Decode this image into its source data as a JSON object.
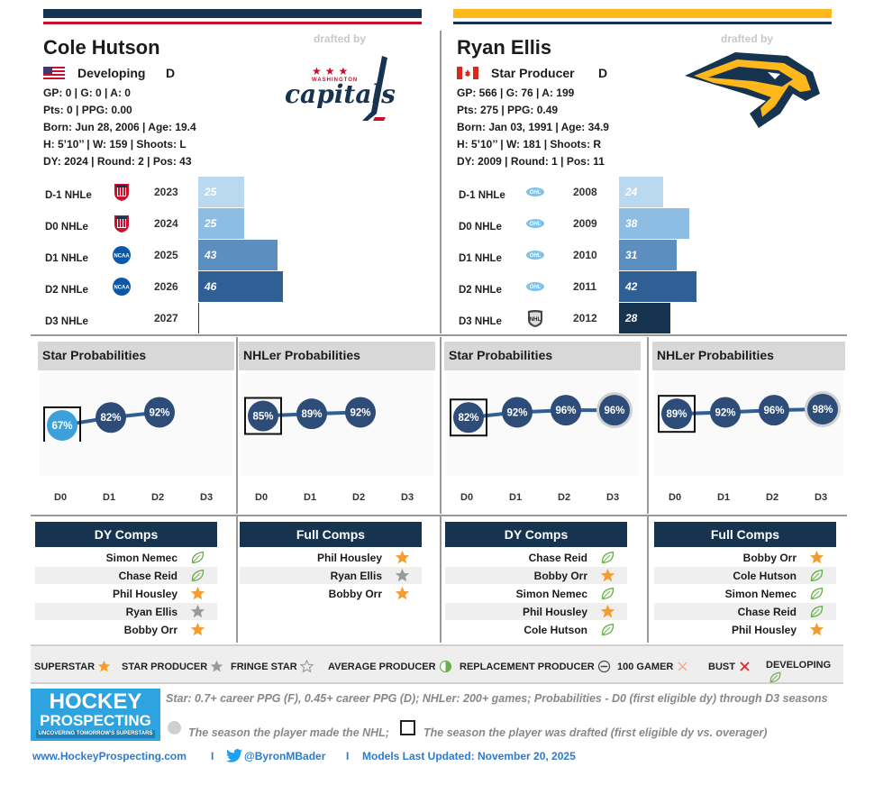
{
  "left": {
    "name": "Cole Hutson",
    "drafted_by": "drafted by",
    "team": "capitals",
    "team_small": "WASHINGTON",
    "status": "Developing",
    "position": "D",
    "country": "USA",
    "line1": "GP: 0 | G: 0 | A: 0",
    "line2": "Pts: 0 | PPG: 0.00",
    "line3": "Born: Jun 28, 2006 | Age: 19.4",
    "line4": "H: 5’10’’ | W: 159 | Shoots: L",
    "line5": "DY: 2024 | Round: 2 | Pos: 43",
    "nhle": [
      {
        "label": "D-1 NHLe",
        "league": "USNTDP",
        "year": "2023",
        "value": 25,
        "color": "#b8d9ef"
      },
      {
        "label": "D0 NHLe",
        "league": "USNTDP",
        "year": "2024",
        "value": 25,
        "color": "#8dbde2"
      },
      {
        "label": "D1 NHLe",
        "league": "NCAA",
        "year": "2025",
        "value": 43,
        "color": "#5c8fbf"
      },
      {
        "label": "D2 NHLe",
        "league": "NCAA",
        "year": "2026",
        "value": 46,
        "color": "#2f5f94"
      },
      {
        "label": "D3 NHLe",
        "league": "",
        "year": "2027",
        "value": null,
        "color": "#16344f"
      }
    ]
  },
  "right": {
    "name": "Ryan Ellis",
    "drafted_by": "drafted by",
    "team": "predators",
    "status": "Star Producer",
    "position": "D",
    "country": "Canada",
    "line1": "GP: 566 | G: 76 | A: 199",
    "line2": "Pts: 275 | PPG: 0.49",
    "line3": "Born: Jan 03, 1991 | Age: 34.9",
    "line4": "H: 5’10’’ | W: 181 | Shoots: R",
    "line5": "DY: 2009 | Round: 1 | Pos: 11",
    "nhle": [
      {
        "label": "D-1 NHLe",
        "league": "OHL",
        "year": "2008",
        "value": 24,
        "color": "#b8d9ef"
      },
      {
        "label": "D0 NHLe",
        "league": "OHL",
        "year": "2009",
        "value": 38,
        "color": "#8dbde2"
      },
      {
        "label": "D1 NHLe",
        "league": "OHL",
        "year": "2010",
        "value": 31,
        "color": "#5c8fbf"
      },
      {
        "label": "D2 NHLe",
        "league": "OHL",
        "year": "2011",
        "value": 42,
        "color": "#2f5f94"
      },
      {
        "label": "D3 NHLe",
        "league": "NHL",
        "year": "2012",
        "value": 28,
        "color": "#16344f"
      }
    ]
  },
  "probabilities": [
    {
      "title": "Star Probabilities",
      "values": [
        67,
        82,
        92,
        null
      ],
      "labels": [
        "67%",
        "82%",
        "92%",
        ""
      ],
      "drafted_index": 0,
      "nhl_index": null
    },
    {
      "title": "NHLer Probabilities",
      "values": [
        85,
        89,
        92,
        null
      ],
      "labels": [
        "85%",
        "89%",
        "92%",
        ""
      ],
      "drafted_index": 0,
      "nhl_index": null
    },
    {
      "title": "Star Probabilities",
      "values": [
        82,
        92,
        96,
        96
      ],
      "labels": [
        "82%",
        "92%",
        "96%",
        "96%"
      ],
      "drafted_index": 0,
      "nhl_index": 3
    },
    {
      "title": "NHLer Probabilities",
      "values": [
        89,
        92,
        96,
        98
      ],
      "labels": [
        "89%",
        "92%",
        "96%",
        "98%"
      ],
      "drafted_index": 0,
      "nhl_index": 3
    }
  ],
  "axis_labels": [
    "D0",
    "D1",
    "D2",
    "D3"
  ],
  "comps": [
    {
      "title": "DY Comps",
      "rows": [
        {
          "name": "Simon Nemec",
          "icon": "developing"
        },
        {
          "name": "Chase Reid",
          "icon": "developing"
        },
        {
          "name": "Phil Housley",
          "icon": "superstar"
        },
        {
          "name": "Ryan Ellis",
          "icon": "star-producer"
        },
        {
          "name": "Bobby Orr",
          "icon": "superstar"
        }
      ]
    },
    {
      "title": "Full Comps",
      "rows": [
        {
          "name": "Phil Housley",
          "icon": "superstar"
        },
        {
          "name": "Ryan Ellis",
          "icon": "star-producer"
        },
        {
          "name": "Bobby Orr",
          "icon": "superstar"
        }
      ]
    },
    {
      "title": "DY Comps",
      "rows": [
        {
          "name": "Chase Reid",
          "icon": "developing"
        },
        {
          "name": "Bobby Orr",
          "icon": "superstar"
        },
        {
          "name": "Simon Nemec",
          "icon": "developing"
        },
        {
          "name": "Phil Housley",
          "icon": "superstar"
        },
        {
          "name": "Cole Hutson",
          "icon": "developing"
        }
      ]
    },
    {
      "title": "Full Comps",
      "rows": [
        {
          "name": "Bobby Orr",
          "icon": "superstar"
        },
        {
          "name": "Cole Hutson",
          "icon": "developing"
        },
        {
          "name": "Simon Nemec",
          "icon": "developing"
        },
        {
          "name": "Chase Reid",
          "icon": "developing"
        },
        {
          "name": "Phil Housley",
          "icon": "superstar"
        }
      ]
    }
  ],
  "legend": [
    {
      "label": "SUPERSTAR",
      "icon": "superstar"
    },
    {
      "label": "STAR PRODUCER",
      "icon": "star-producer"
    },
    {
      "label": "FRINGE STAR",
      "icon": "fringe-star"
    },
    {
      "label": "AVERAGE PRODUCER",
      "icon": "average-producer"
    },
    {
      "label": "REPLACEMENT PRODUCER",
      "icon": "replacement-producer"
    },
    {
      "label": "100 GAMER",
      "icon": "100-gamer"
    },
    {
      "label": "BUST",
      "icon": "bust"
    },
    {
      "label": "DEVELOPING",
      "icon": "developing"
    }
  ],
  "footer": {
    "logo_line1": "HOCKEY",
    "logo_line2": "PROSPECTING",
    "logo_tagline": "UNCOVERING TOMORROW'S SUPERSTARS",
    "note1": "Star: 0.7+ career PPG (F), 0.45+ career PPG (D); NHLer: 200+ games; Probabilities - D0 (first eligible dy) through D3 seasons",
    "note2": "The season the player made the NHL;",
    "note3": "The season the player was drafted (first eligible dy vs. overager)",
    "website": "www.HockeyProspecting.com",
    "twitter": "@ByronMBader",
    "updated": "Models Last Updated: November 20, 2025",
    "sep": "I"
  },
  "colors": {
    "navy": "#16344f",
    "red": "#c8102e",
    "gold": "#ffb81c",
    "orange": "#f39c2f",
    "green": "#6ab04c",
    "light_blue": "#3ea0db"
  }
}
